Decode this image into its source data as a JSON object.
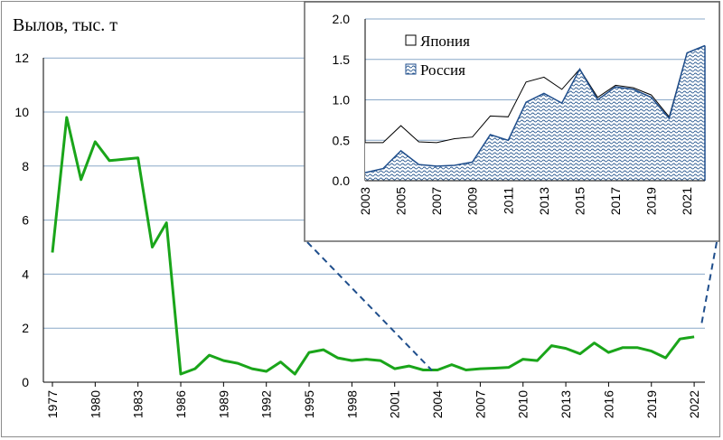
{
  "chart_data": [
    {
      "type": "line",
      "ylabel": "Вылов, тыс. т",
      "ylim": [
        0,
        12
      ],
      "yticks": [
        "0",
        "2",
        "4",
        "6",
        "8",
        "10",
        "12"
      ],
      "xticks": [
        "1977",
        "1980",
        "1983",
        "1986",
        "1989",
        "1992",
        "1995",
        "1998",
        "2001",
        "2004",
        "2007",
        "2010",
        "2013",
        "2016",
        "2019",
        "2022"
      ],
      "grid": "horizontal",
      "color": "#1aa51a",
      "series": [
        {
          "x": [
            1977,
            1978,
            1979,
            1980,
            1981,
            1982,
            1983,
            1984,
            1985,
            1986,
            1987,
            1988,
            1989,
            1990,
            1991,
            1992,
            1993,
            1994,
            1995,
            1996,
            1997,
            1998,
            1999,
            2000,
            2001,
            2002,
            2003,
            2004,
            2005,
            2006,
            2007,
            2008,
            2009,
            2010,
            2011,
            2012,
            2013,
            2014,
            2015,
            2016,
            2017,
            2018,
            2019,
            2020,
            2021,
            2022
          ],
          "values": [
            4.8,
            9.8,
            7.5,
            8.9,
            8.2,
            8.25,
            8.3,
            5.0,
            5.9,
            0.3,
            0.5,
            1.0,
            0.8,
            0.7,
            0.5,
            0.4,
            0.75,
            0.3,
            1.1,
            1.2,
            0.9,
            0.8,
            0.85,
            0.8,
            0.5,
            0.6,
            0.45,
            0.45,
            0.65,
            0.45,
            0.5,
            0.52,
            0.55,
            0.85,
            0.8,
            1.35,
            1.25,
            1.05,
            1.45,
            1.1,
            1.28,
            1.28,
            1.15,
            0.9,
            1.6,
            1.68
          ]
        }
      ]
    },
    {
      "type": "area",
      "ylim": [
        0,
        2.0
      ],
      "yticks": [
        "0.0",
        "0.5",
        "1.0",
        "1.5",
        "2.0"
      ],
      "xticks": [
        "2003",
        "2005",
        "2007",
        "2009",
        "2011",
        "2013",
        "2015",
        "2017",
        "2019",
        "2021"
      ],
      "grid": "horizontal",
      "legend_position": "top-left",
      "x": [
        2003,
        2004,
        2005,
        2006,
        2007,
        2008,
        2009,
        2010,
        2011,
        2012,
        2013,
        2014,
        2015,
        2016,
        2017,
        2018,
        2019,
        2020,
        2021,
        2022
      ],
      "series": [
        {
          "name": "Япония",
          "values": [
            0.47,
            0.47,
            0.68,
            0.48,
            0.47,
            0.52,
            0.54,
            0.8,
            0.79,
            1.22,
            1.28,
            1.13,
            1.38,
            1.03,
            1.18,
            1.15,
            1.06,
            0.79,
            1.58,
            1.67
          ]
        },
        {
          "name": "Россия",
          "values": [
            0.1,
            0.15,
            0.37,
            0.2,
            0.18,
            0.19,
            0.23,
            0.57,
            0.5,
            0.97,
            1.08,
            0.96,
            1.38,
            1.0,
            1.16,
            1.13,
            1.03,
            0.77,
            1.58,
            1.67
          ]
        }
      ],
      "colors": {
        "russia_fill": "#2e5c92",
        "russia_edge": "#1f4e8c",
        "japan_edge": "#000000"
      }
    }
  ]
}
